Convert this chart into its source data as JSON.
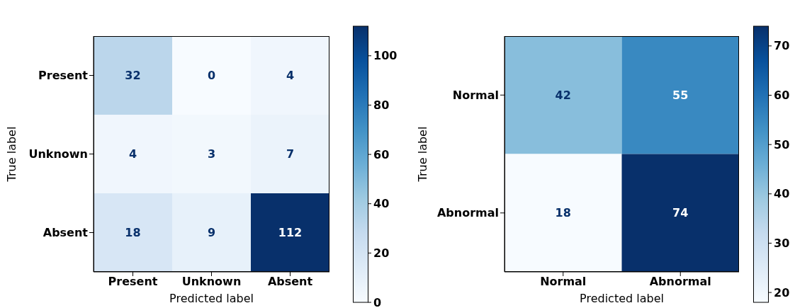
{
  "chart_data": [
    {
      "type": "heatmap",
      "categories": [
        "Present",
        "Unknown",
        "Absent"
      ],
      "y_categories": [
        "Present",
        "Unknown",
        "Absent"
      ],
      "xlabel": "Predicted label",
      "ylabel": "True label",
      "cells": [
        [
          32,
          0,
          4
        ],
        [
          4,
          3,
          7
        ],
        [
          18,
          9,
          112
        ]
      ],
      "clim": [
        0,
        112
      ],
      "cticks": [
        0,
        20,
        40,
        60,
        80,
        100
      ],
      "data_labels": true
    },
    {
      "type": "heatmap",
      "categories": [
        "Normal",
        "Abnormal"
      ],
      "y_categories": [
        "Normal",
        "Abnormal"
      ],
      "xlabel": "Predicted label",
      "ylabel": "True label",
      "cells": [
        [
          42,
          55
        ],
        [
          18,
          74
        ]
      ],
      "clim": [
        18,
        74
      ],
      "cticks": [
        20,
        30,
        40,
        50,
        60,
        70
      ],
      "data_labels": true
    }
  ]
}
